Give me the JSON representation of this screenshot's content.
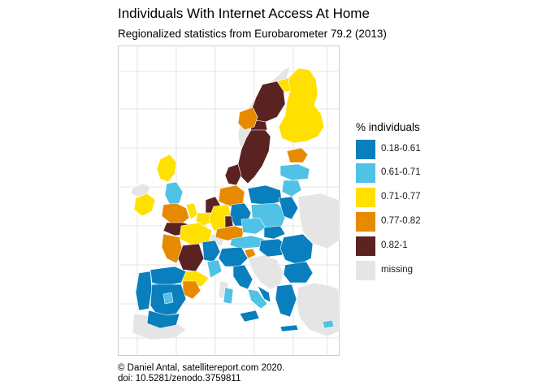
{
  "title": "Individuals With Internet Access At Home",
  "subtitle": "Regionalized statistics from Eurobarometer 79.2 (2013)",
  "legend": {
    "title": "% individuals",
    "items": [
      {
        "label": "0.18-0.61",
        "color": "#0A7FBE"
      },
      {
        "label": "0.61-0.71",
        "color": "#4FC2E5"
      },
      {
        "label": "0.71-0.77",
        "color": "#FFE000"
      },
      {
        "label": "0.77-0.82",
        "color": "#E88A00"
      },
      {
        "label": "0.82-1",
        "color": "#5B2222"
      },
      {
        "label": "missing",
        "color": "#E5E5E5"
      }
    ]
  },
  "caption": {
    "line1": "© Daniel Antal, satellitereport.com 2020.",
    "line2": "doi: 10.5281/zenodo.3759811"
  },
  "map": {
    "background_color": "#FFFFFF",
    "grid_color": "#DADADA",
    "border_color": "#FFFFFF"
  }
}
